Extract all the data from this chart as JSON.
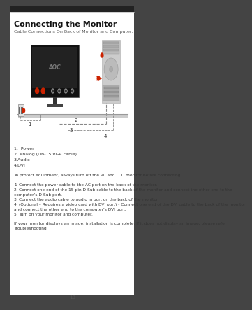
{
  "title": "Connecting the Monitor",
  "subtitle": "Cable Connections On Back of Monitor and Computer:",
  "bg_color": "#ffffff",
  "page_bg": "#444444",
  "border_color": "#cccccc",
  "page_num": "13",
  "items_list": [
    "1.  Power",
    "2. Analog (DB-15 VGA cable)",
    "3.Audio",
    "4.DVI"
  ],
  "warning": "To protect equipment, always turn off the PC and LCD monitor before connecting.",
  "steps": [
    [
      "1",
      "Connect the power cable to the AC port on the back of the monitor."
    ],
    [
      "2",
      "Connect one end of the 15-pin D-Sub cable to the back of the monitor and connect the other end to the\ncomputer’s D-Sub port."
    ],
    [
      "3",
      "Connect the audio cable to audio in port on the back of the monitor."
    ],
    [
      "4",
      "(Optional – Requires a video card with DVI port) - Connect one end of the DVI cable to the back of the monitor\nand connect the other end to the computer’s DVI port."
    ],
    [
      "5",
      "Turn on your monitor and computer."
    ]
  ],
  "footer": "If your monitor displays an image, installation is complete. If it does not display an image, please refer\nTroubleshooting."
}
